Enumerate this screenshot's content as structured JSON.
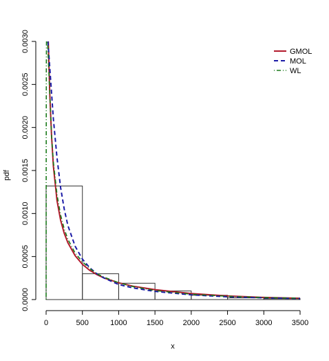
{
  "chart_data": {
    "type": "histogram-with-density-lines",
    "title": "",
    "xlabel": "x",
    "ylabel": "pdf",
    "xlim": [
      0,
      3500
    ],
    "ylim": [
      0,
      0.003
    ],
    "x_ticks": [
      "0",
      "500",
      "1000",
      "1500",
      "2000",
      "2500",
      "3000",
      "3500"
    ],
    "y_ticks": [
      "0.0000",
      "0.0005",
      "0.0010",
      "0.0015",
      "0.0020",
      "0.0025",
      "0.0030"
    ],
    "histogram": {
      "bins": [
        {
          "x0": 0,
          "x1": 500,
          "density": 0.00132
        },
        {
          "x0": 500,
          "x1": 1000,
          "density": 0.0003
        },
        {
          "x0": 1000,
          "x1": 1500,
          "density": 0.00019
        },
        {
          "x0": 1500,
          "x1": 2000,
          "density": 0.0001
        },
        {
          "x0": 2000,
          "x1": 2500,
          "density": 5e-05
        },
        {
          "x0": 2500,
          "x1": 3000,
          "density": 2e-05
        },
        {
          "x0": 3000,
          "x1": 3500,
          "density": 1e-05
        }
      ]
    },
    "series": [
      {
        "name": "GMOL",
        "color": "#b2182b",
        "style": "solid",
        "x": [
          30,
          50,
          75,
          100,
          150,
          200,
          250,
          300,
          400,
          500,
          600,
          700,
          800,
          1000,
          1200,
          1500,
          2000,
          2500,
          3000,
          3500
        ],
        "y": [
          0.003,
          0.0024,
          0.0019,
          0.00155,
          0.00115,
          0.00092,
          0.00077,
          0.00066,
          0.00051,
          0.00041,
          0.00034,
          0.00029,
          0.00025,
          0.000195,
          0.000155,
          0.000115,
          7e-05,
          4.2e-05,
          2.5e-05,
          1.5e-05
        ]
      },
      {
        "name": "MOL",
        "color": "#1a1aa6",
        "style": "dashed",
        "x": [
          25,
          50,
          75,
          100,
          150,
          200,
          250,
          300,
          400,
          500,
          600,
          700,
          800,
          1000,
          1200,
          1500,
          2000,
          2500,
          3000,
          3500
        ],
        "y": [
          0.003,
          0.0027,
          0.0024,
          0.0021,
          0.00165,
          0.0013,
          0.00105,
          0.00086,
          0.00062,
          0.00047,
          0.00037,
          0.0003,
          0.00025,
          0.000175,
          0.000135,
          9.5e-05,
          5.5e-05,
          3.2e-05,
          2e-05,
          1.2e-05
        ]
      },
      {
        "name": "WL",
        "color": "#1a7a1a",
        "style": "dotdash",
        "x": [
          0,
          1,
          3,
          5,
          10,
          20,
          30,
          50,
          75,
          100,
          150,
          200,
          250,
          300,
          400,
          500,
          600,
          700,
          800,
          1000,
          1200,
          1500,
          2000,
          2500,
          3000,
          3500
        ],
        "y": [
          0.0,
          0.0015,
          0.0027,
          0.003,
          0.003,
          0.003,
          0.0028,
          0.0024,
          0.0019,
          0.0016,
          0.00122,
          0.00098,
          0.00082,
          0.0007,
          0.00054,
          0.00044,
          0.00036,
          0.0003,
          0.00026,
          0.000195,
          0.00015,
          0.000105,
          6.2e-05,
          3.8e-05,
          2.4e-05,
          1.5e-05
        ]
      }
    ],
    "legend": {
      "position": "top-right",
      "entries": [
        "GMOL",
        "MOL",
        "WL"
      ]
    },
    "grid": false
  }
}
